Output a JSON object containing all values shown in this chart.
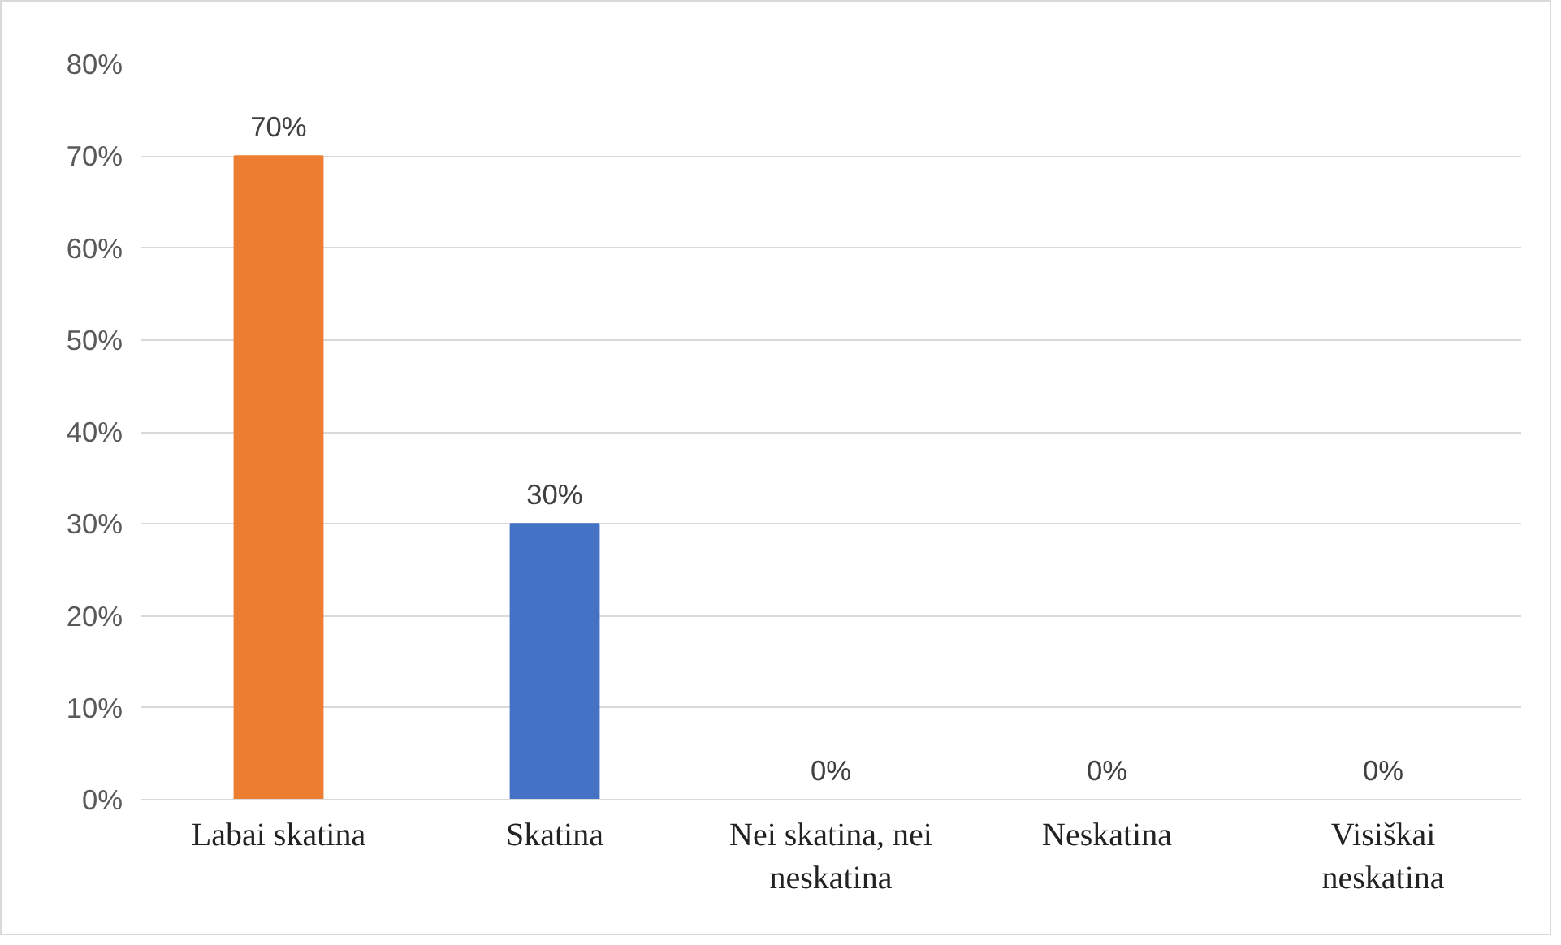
{
  "chart_data": {
    "type": "bar",
    "categories": [
      "Labai skatina",
      "Skatina",
      "Nei skatina, nei neskatina",
      "Neskatina",
      "Visiškai neskatina"
    ],
    "values": [
      70,
      30,
      0,
      0,
      0
    ],
    "colors": [
      "#ed7d31",
      "#4472c4",
      "#a5a5a5",
      "#ffc000",
      "#5b9bd5"
    ],
    "value_labels": [
      "70%",
      "30%",
      "0%",
      "0%",
      "0%"
    ],
    "ylim": [
      0,
      80
    ],
    "yticks": [
      {
        "value": 0,
        "label": "0%"
      },
      {
        "value": 10,
        "label": "10%"
      },
      {
        "value": 20,
        "label": "20%"
      },
      {
        "value": 30,
        "label": "30%"
      },
      {
        "value": 40,
        "label": "40%"
      },
      {
        "value": 50,
        "label": "50%"
      },
      {
        "value": 60,
        "label": "60%"
      },
      {
        "value": 70,
        "label": "70%"
      },
      {
        "value": 80,
        "label": "80%"
      }
    ],
    "grid": "y"
  }
}
